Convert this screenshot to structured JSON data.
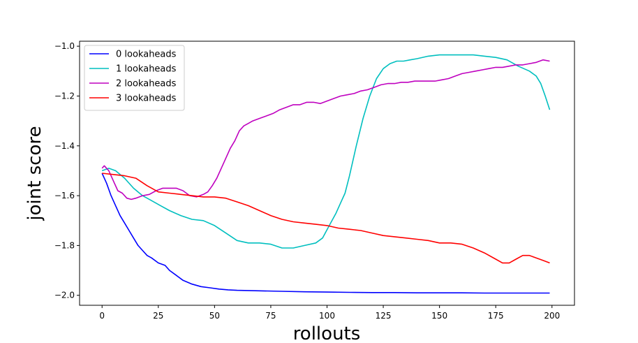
{
  "chart_data": {
    "type": "line",
    "title": "",
    "xlabel": "rollouts",
    "ylabel": "joint score",
    "xlim": [
      -10,
      210
    ],
    "ylim": [
      -2.04,
      -0.98
    ],
    "xticks": [
      0,
      25,
      50,
      75,
      100,
      125,
      150,
      175,
      200
    ],
    "yticks": [
      -2.0,
      -1.8,
      -1.6,
      -1.4,
      -1.2,
      -1.0
    ],
    "ytick_labels": [
      "−2.0",
      "−1.8",
      "−1.6",
      "−1.4",
      "−1.2",
      "−1.0"
    ],
    "grid": false,
    "legend": "top-left",
    "series": [
      {
        "name": "0 lookaheads",
        "color": "#0000ff",
        "x": [
          0,
          2,
          4,
          6,
          8,
          10,
          12,
          14,
          16,
          18,
          20,
          22,
          25,
          28,
          30,
          33,
          36,
          40,
          44,
          48,
          52,
          56,
          60,
          70,
          80,
          90,
          100,
          110,
          120,
          130,
          140,
          150,
          160,
          170,
          180,
          190,
          199
        ],
        "y": [
          -1.51,
          -1.55,
          -1.6,
          -1.64,
          -1.68,
          -1.71,
          -1.74,
          -1.77,
          -1.8,
          -1.82,
          -1.84,
          -1.85,
          -1.87,
          -1.88,
          -1.9,
          -1.92,
          -1.94,
          -1.955,
          -1.965,
          -1.97,
          -1.975,
          -1.978,
          -1.98,
          -1.982,
          -1.984,
          -1.986,
          -1.987,
          -1.988,
          -1.989,
          -1.989,
          -1.99,
          -1.99,
          -1.99,
          -1.991,
          -1.991,
          -1.991,
          -1.991
        ]
      },
      {
        "name": "1 lookaheads",
        "color": "#00bfbf",
        "x": [
          0,
          3,
          6,
          10,
          14,
          18,
          22,
          26,
          30,
          35,
          40,
          45,
          50,
          55,
          60,
          65,
          70,
          75,
          80,
          85,
          90,
          95,
          98,
          101,
          104,
          106,
          108,
          110,
          113,
          116,
          119,
          122,
          125,
          128,
          131,
          134,
          137,
          140,
          145,
          150,
          155,
          160,
          165,
          170,
          175,
          180,
          185,
          190,
          193,
          195,
          197,
          199
        ],
        "y": [
          -1.5,
          -1.49,
          -1.5,
          -1.53,
          -1.57,
          -1.6,
          -1.62,
          -1.64,
          -1.66,
          -1.68,
          -1.695,
          -1.7,
          -1.72,
          -1.75,
          -1.78,
          -1.79,
          -1.79,
          -1.795,
          -1.81,
          -1.81,
          -1.8,
          -1.79,
          -1.77,
          -1.72,
          -1.67,
          -1.63,
          -1.59,
          -1.52,
          -1.4,
          -1.29,
          -1.2,
          -1.13,
          -1.09,
          -1.07,
          -1.06,
          -1.06,
          -1.055,
          -1.05,
          -1.04,
          -1.035,
          -1.035,
          -1.035,
          -1.035,
          -1.04,
          -1.045,
          -1.055,
          -1.08,
          -1.1,
          -1.12,
          -1.15,
          -1.2,
          -1.255
        ]
      },
      {
        "name": "2 lookaheads",
        "color": "#bf00bf",
        "x": [
          0,
          1,
          3,
          5,
          7,
          9,
          11,
          13,
          15,
          18,
          21,
          24,
          27,
          30,
          33,
          36,
          39,
          42,
          45,
          47,
          49,
          51,
          53,
          55,
          57,
          59,
          61,
          63,
          65,
          67,
          70,
          73,
          76,
          79,
          82,
          85,
          88,
          91,
          94,
          97,
          100,
          103,
          106,
          109,
          112,
          115,
          118,
          121,
          124,
          127,
          130,
          133,
          136,
          139,
          142,
          145,
          148,
          151,
          154,
          157,
          160,
          163,
          166,
          169,
          172,
          175,
          178,
          181,
          184,
          187,
          190,
          193,
          196,
          199
        ],
        "y": [
          -1.49,
          -1.48,
          -1.5,
          -1.54,
          -1.58,
          -1.59,
          -1.61,
          -1.615,
          -1.61,
          -1.6,
          -1.595,
          -1.58,
          -1.57,
          -1.57,
          -1.57,
          -1.58,
          -1.6,
          -1.605,
          -1.595,
          -1.585,
          -1.56,
          -1.53,
          -1.49,
          -1.45,
          -1.41,
          -1.38,
          -1.34,
          -1.32,
          -1.31,
          -1.3,
          -1.29,
          -1.28,
          -1.27,
          -1.255,
          -1.245,
          -1.235,
          -1.235,
          -1.225,
          -1.225,
          -1.23,
          -1.22,
          -1.21,
          -1.2,
          -1.195,
          -1.19,
          -1.18,
          -1.175,
          -1.165,
          -1.155,
          -1.15,
          -1.15,
          -1.145,
          -1.145,
          -1.14,
          -1.14,
          -1.14,
          -1.14,
          -1.135,
          -1.13,
          -1.12,
          -1.11,
          -1.105,
          -1.1,
          -1.095,
          -1.09,
          -1.085,
          -1.085,
          -1.08,
          -1.075,
          -1.075,
          -1.07,
          -1.065,
          -1.055,
          -1.06
        ]
      },
      {
        "name": "3 lookaheads",
        "color": "#ff0000",
        "x": [
          0,
          5,
          10,
          15,
          20,
          25,
          30,
          35,
          40,
          45,
          50,
          55,
          60,
          65,
          70,
          75,
          80,
          85,
          90,
          95,
          100,
          105,
          110,
          115,
          120,
          125,
          130,
          135,
          140,
          145,
          150,
          155,
          160,
          165,
          170,
          175,
          178,
          181,
          184,
          187,
          190,
          193,
          196,
          199
        ],
        "y": [
          -1.51,
          -1.515,
          -1.52,
          -1.53,
          -1.56,
          -1.585,
          -1.59,
          -1.595,
          -1.6,
          -1.605,
          -1.605,
          -1.61,
          -1.625,
          -1.64,
          -1.66,
          -1.68,
          -1.695,
          -1.705,
          -1.71,
          -1.715,
          -1.72,
          -1.73,
          -1.735,
          -1.74,
          -1.75,
          -1.76,
          -1.765,
          -1.77,
          -1.775,
          -1.78,
          -1.79,
          -1.79,
          -1.795,
          -1.81,
          -1.83,
          -1.855,
          -1.87,
          -1.87,
          -1.855,
          -1.84,
          -1.84,
          -1.85,
          -1.86,
          -1.87
        ]
      }
    ]
  }
}
